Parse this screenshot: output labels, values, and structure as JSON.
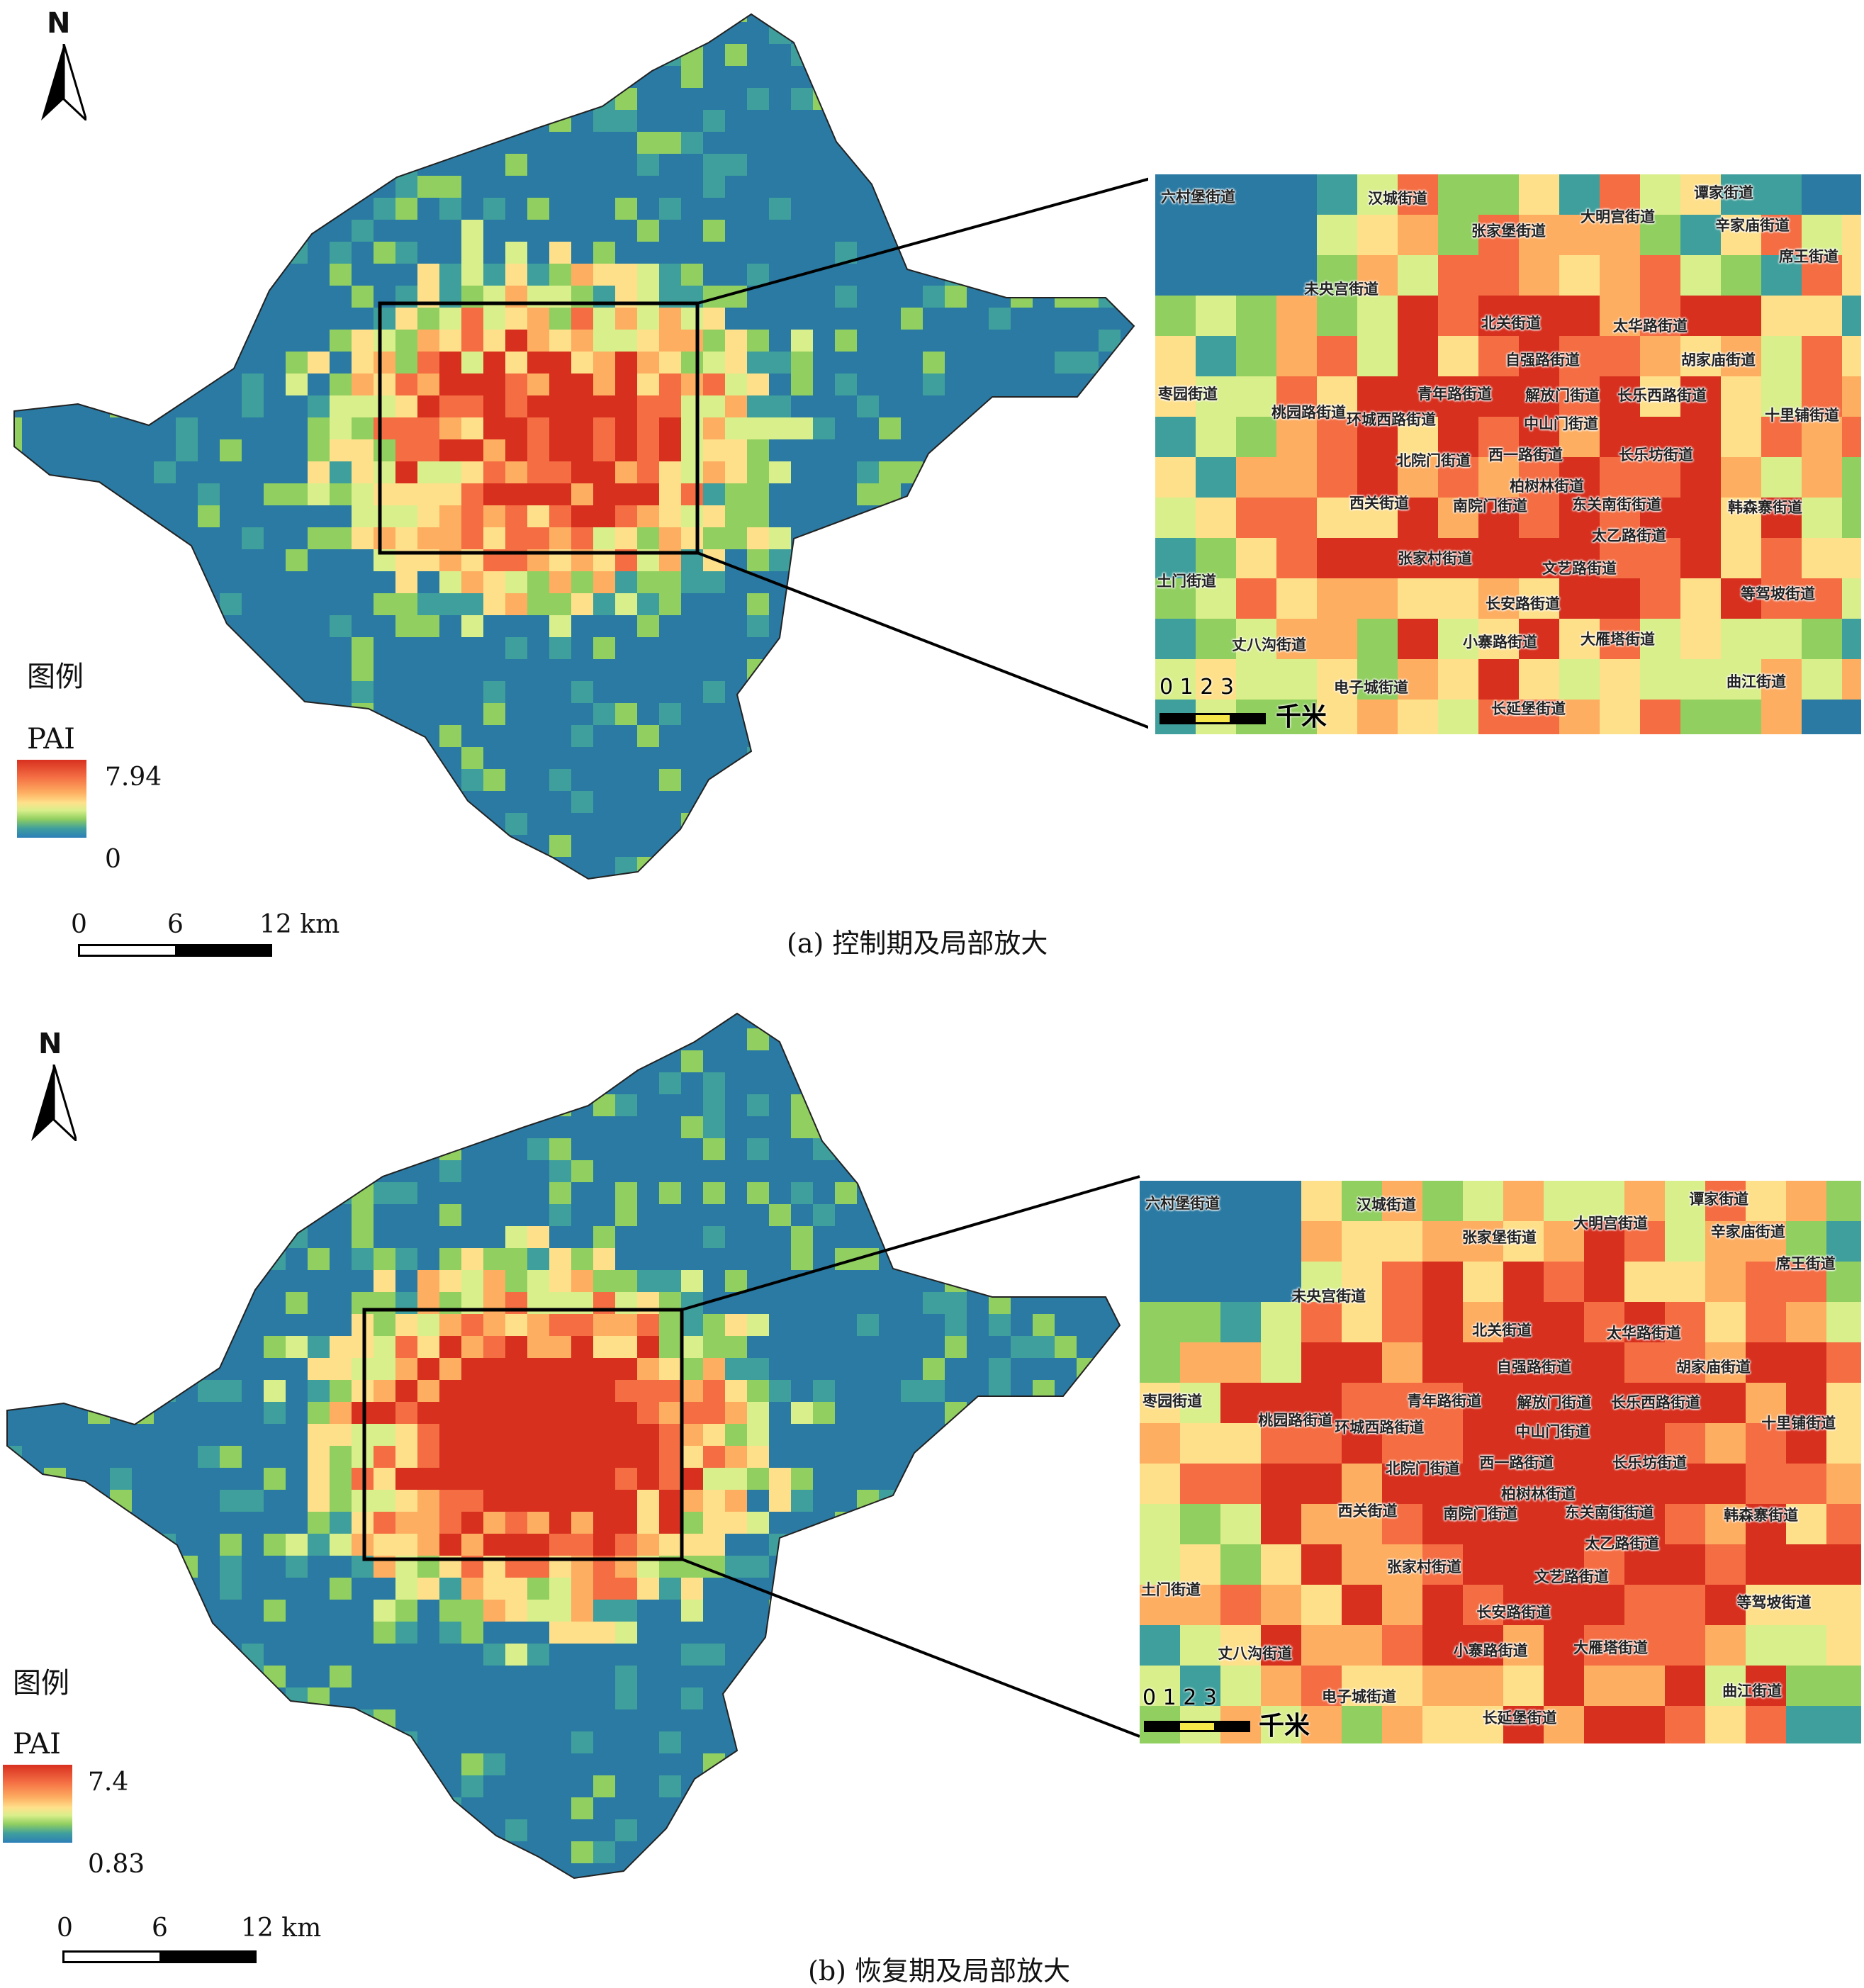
{
  "panels": [
    {
      "id": "a",
      "north_label": "N",
      "legend_title": "图例",
      "legend_var": "PAI",
      "legend_max": "7.94",
      "legend_min": "0",
      "scale": {
        "n0": "0",
        "n1": "6",
        "n2": "12 km"
      },
      "caption": "(a) 控制期及局部放大",
      "inset_scale": {
        "nums": "0 1 2 3",
        "unit": "千米"
      }
    },
    {
      "id": "b",
      "north_label": "N",
      "legend_title": "图例",
      "legend_var": "PAI",
      "legend_max": "7.4",
      "legend_min": "0.83",
      "scale": {
        "n0": "0",
        "n1": "6",
        "n2": "12 km"
      },
      "caption": "(b) 恢复期及局部放大",
      "inset_scale": {
        "nums": "0 1 2 3",
        "unit": "千米"
      }
    }
  ],
  "streets": [
    "六村堡街道",
    "汉城街道",
    "谭家街道",
    "大明宫街道",
    "张家堡街道",
    "辛家庙街道",
    "未央宫街道",
    "席王街道",
    "北关街道",
    "太华路街道",
    "自强路街道",
    "胡家庙街道",
    "枣园街道",
    "青年路街道",
    "解放门街道",
    "长乐西路街道",
    "十里铺街道",
    "桃园路街道",
    "环城西路街道",
    "中山门街道",
    "北院门街道",
    "西一路街道",
    "长乐坊街道",
    "柏树林街道",
    "西关街道",
    "南院门街道",
    "东关南街街道",
    "韩森寨街道",
    "太乙路街道",
    "张家村街道",
    "土门街道",
    "文艺路街道",
    "等驾坡街道",
    "长安路街道",
    "丈八沟街道",
    "小寨路街道",
    "大雁塔街道",
    "电子城街道",
    "曲江街道",
    "长延堡街道"
  ],
  "colors": {
    "low": "#2a7aa3",
    "teal": "#3f9f9c",
    "green": "#91cf60",
    "lime": "#d9ef8b",
    "yellow": "#fee08b",
    "orange": "#fdae61",
    "dorange": "#f46d43",
    "red": "#d7301f"
  }
}
